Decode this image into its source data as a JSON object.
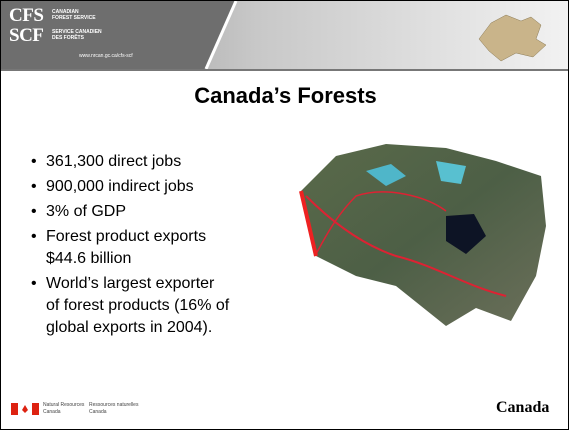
{
  "header": {
    "cfs": "CFS",
    "cfs_name": [
      "CANADIAN",
      "FOREST SERVICE"
    ],
    "scf": "SCF",
    "scf_name": [
      "SERVICE CANADIEN",
      "DES FORÊTS"
    ],
    "url": "www.nrcan.gc.ca/cfs-scf"
  },
  "title": "Canada’s Forests",
  "bullets": [
    [
      "361,300 direct jobs"
    ],
    [
      "900,000 indirect jobs"
    ],
    [
      "3% of GDP"
    ],
    [
      "Forest product exports",
      "$44.6 billion"
    ],
    [
      "World’s largest exporter",
      "of forest products (16% of",
      "global exports in 2004)."
    ]
  ],
  "footer": {
    "en": [
      "Natural Resources",
      "Canada"
    ],
    "fr": [
      "Ressources naturelles",
      "Canada"
    ],
    "wordmark": "Canada"
  }
}
